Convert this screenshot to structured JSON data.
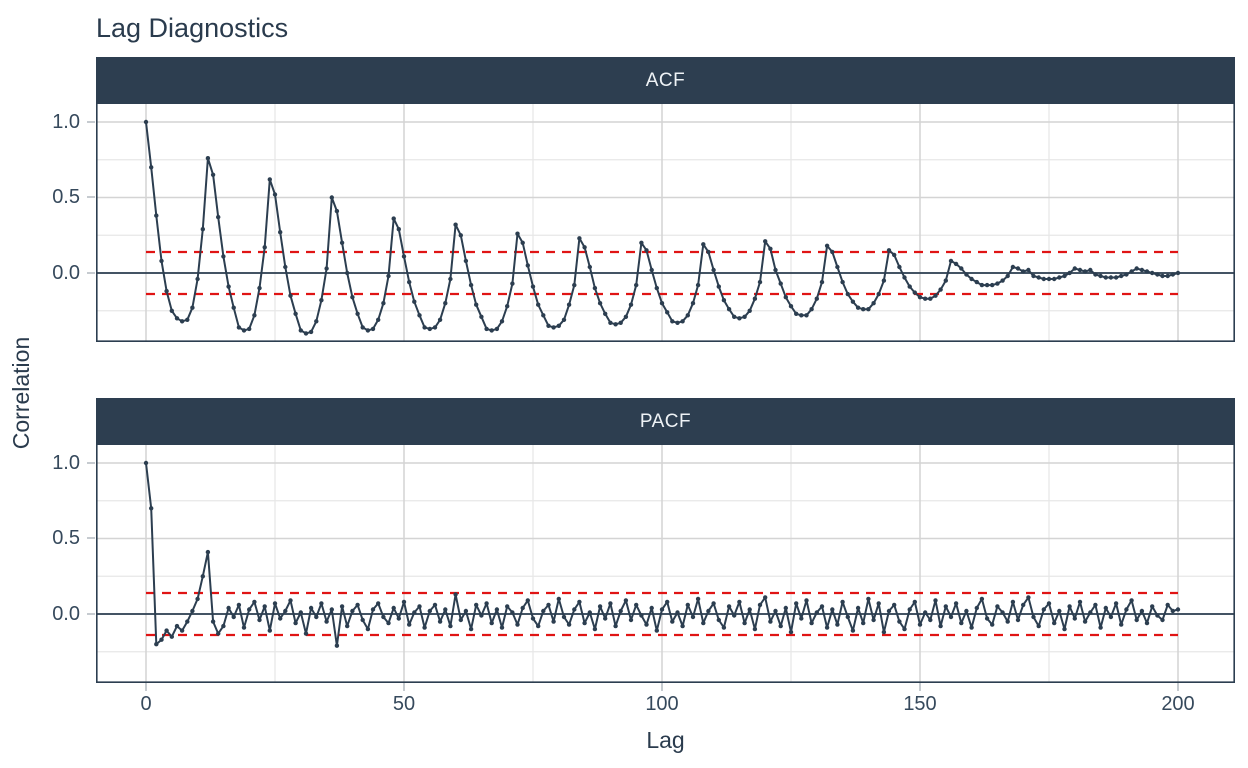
{
  "title": "Lag Diagnostics",
  "chart_data": {
    "type": "line",
    "title": "Lag Diagnostics",
    "xlabel": "Lag",
    "ylabel": "Correlation",
    "x_ticks": [
      0,
      50,
      100,
      150,
      200
    ],
    "x_minor_ticks": [
      25,
      75,
      125,
      175
    ],
    "x_tick_labels": [
      "0",
      "50",
      "100",
      "150",
      "200"
    ],
    "y_ticks": [
      1.0,
      0.5,
      0.0
    ],
    "y_minor_ticks": [
      0.75,
      0.25,
      -0.25
    ],
    "y_tick_labels": [
      "1.0",
      "0.5",
      "0.0"
    ],
    "xlim": [
      -9.7,
      211
    ],
    "ylim": [
      -0.46,
      1.13
    ],
    "grid": true,
    "legend": "none",
    "conf_band": 0.139,
    "conf_band_style": "dashed",
    "x_range_of_band": [
      0,
      200
    ],
    "colors": {
      "series": "#2C3E50",
      "zero_line": "#2C3E50",
      "strip_bg": "#2D3E50",
      "strip_text": "#EFF3F6",
      "band": "#E01414",
      "grid_major": "#D4D4D4",
      "grid_minor": "#E7E7E7",
      "axis_text": "#36495C",
      "tick": "#C6CBD0",
      "title_text": "#2A3B4D"
    },
    "facets": [
      {
        "label": "ACF",
        "values": [
          1.0,
          0.7,
          0.38,
          0.08,
          -0.12,
          -0.25,
          -0.3,
          -0.32,
          -0.31,
          -0.23,
          -0.04,
          0.29,
          0.76,
          0.65,
          0.37,
          0.11,
          -0.09,
          -0.23,
          -0.36,
          -0.38,
          -0.37,
          -0.28,
          -0.1,
          0.17,
          0.62,
          0.52,
          0.27,
          0.04,
          -0.15,
          -0.27,
          -0.38,
          -0.4,
          -0.39,
          -0.32,
          -0.18,
          0.03,
          0.5,
          0.41,
          0.2,
          0.0,
          -0.16,
          -0.27,
          -0.36,
          -0.38,
          -0.37,
          -0.31,
          -0.2,
          -0.02,
          0.36,
          0.29,
          0.11,
          -0.06,
          -0.19,
          -0.28,
          -0.36,
          -0.37,
          -0.36,
          -0.31,
          -0.2,
          -0.04,
          0.32,
          0.25,
          0.08,
          -0.08,
          -0.21,
          -0.29,
          -0.37,
          -0.38,
          -0.37,
          -0.32,
          -0.22,
          -0.07,
          0.26,
          0.2,
          0.05,
          -0.09,
          -0.21,
          -0.28,
          -0.35,
          -0.36,
          -0.35,
          -0.31,
          -0.21,
          -0.08,
          0.23,
          0.17,
          0.04,
          -0.1,
          -0.2,
          -0.27,
          -0.33,
          -0.34,
          -0.33,
          -0.29,
          -0.21,
          -0.08,
          0.2,
          0.15,
          0.02,
          -0.1,
          -0.2,
          -0.26,
          -0.32,
          -0.33,
          -0.32,
          -0.28,
          -0.2,
          -0.08,
          0.19,
          0.14,
          0.02,
          -0.09,
          -0.18,
          -0.24,
          -0.29,
          -0.3,
          -0.29,
          -0.25,
          -0.17,
          -0.06,
          0.21,
          0.16,
          0.02,
          -0.07,
          -0.16,
          -0.22,
          -0.27,
          -0.28,
          -0.28,
          -0.24,
          -0.17,
          -0.06,
          0.18,
          0.14,
          0.04,
          -0.06,
          -0.14,
          -0.19,
          -0.23,
          -0.24,
          -0.24,
          -0.2,
          -0.14,
          -0.05,
          0.15,
          0.12,
          0.04,
          -0.03,
          -0.09,
          -0.13,
          -0.16,
          -0.17,
          -0.17,
          -0.15,
          -0.11,
          -0.05,
          0.08,
          0.06,
          0.03,
          -0.01,
          -0.04,
          -0.06,
          -0.08,
          -0.08,
          -0.08,
          -0.07,
          -0.05,
          -0.02,
          0.04,
          0.03,
          0.01,
          0.02,
          -0.02,
          -0.03,
          -0.04,
          -0.04,
          -0.04,
          -0.03,
          -0.02,
          0.0,
          0.03,
          0.02,
          0.01,
          0.02,
          -0.01,
          -0.02,
          -0.03,
          -0.03,
          -0.03,
          -0.02,
          -0.01,
          0.01,
          0.03,
          0.02,
          0.01,
          0.0,
          -0.01,
          -0.02,
          -0.02,
          -0.01,
          0.0
        ]
      },
      {
        "label": "PACF",
        "values": [
          1.0,
          0.7,
          -0.2,
          -0.17,
          -0.11,
          -0.15,
          -0.08,
          -0.11,
          -0.05,
          0.02,
          0.1,
          0.25,
          0.41,
          -0.05,
          -0.13,
          -0.08,
          0.04,
          -0.02,
          0.06,
          -0.09,
          0.03,
          0.08,
          -0.04,
          0.05,
          -0.11,
          0.07,
          -0.03,
          0.02,
          0.09,
          -0.06,
          0.01,
          -0.13,
          0.04,
          -0.02,
          0.07,
          -0.05,
          0.03,
          -0.21,
          0.05,
          -0.08,
          0.02,
          0.06,
          -0.04,
          -0.1,
          0.03,
          0.07,
          -0.02,
          -0.06,
          0.04,
          -0.03,
          0.08,
          -0.07,
          0.01,
          0.05,
          -0.09,
          0.02,
          0.06,
          -0.05,
          0.03,
          -0.08,
          0.13,
          -0.04,
          0.02,
          -0.1,
          0.06,
          -0.01,
          0.07,
          -0.06,
          0.03,
          -0.09,
          0.05,
          0.01,
          -0.07,
          0.04,
          0.09,
          -0.03,
          -0.08,
          0.02,
          0.06,
          -0.05,
          0.1,
          -0.02,
          -0.07,
          0.03,
          0.08,
          -0.06,
          0.01,
          -0.1,
          0.05,
          -0.03,
          0.07,
          -0.08,
          0.02,
          0.09,
          -0.04,
          0.06,
          -0.01,
          -0.07,
          0.04,
          -0.11,
          0.03,
          0.08,
          -0.05,
          0.01,
          -0.08,
          0.06,
          -0.02,
          0.1,
          -0.06,
          0.02,
          0.07,
          -0.04,
          -0.09,
          0.05,
          -0.01,
          0.08,
          -0.06,
          0.03,
          -0.1,
          0.06,
          0.11,
          -0.05,
          0.02,
          -0.08,
          0.04,
          -0.12,
          0.07,
          -0.03,
          0.09,
          -0.06,
          0.01,
          0.05,
          -0.09,
          0.03,
          -0.07,
          0.08,
          -0.02,
          -0.11,
          0.04,
          -0.06,
          0.1,
          -0.04,
          0.07,
          -0.12,
          0.02,
          0.06,
          -0.05,
          -0.1,
          0.03,
          0.08,
          -0.07,
          0.01,
          -0.04,
          0.09,
          -0.08,
          0.05,
          -0.02,
          0.07,
          -0.06,
          0.02,
          -0.09,
          0.04,
          0.1,
          -0.03,
          -0.07,
          0.05,
          0.01,
          -0.05,
          0.08,
          -0.04,
          0.06,
          0.11,
          -0.02,
          -0.08,
          0.03,
          0.07,
          -0.06,
          0.02,
          -0.1,
          0.05,
          -0.03,
          0.08,
          -0.05,
          0.01,
          0.06,
          -0.09,
          0.04,
          -0.02,
          0.07,
          -0.07,
          0.03,
          0.09,
          -0.04,
          0.02,
          -0.06,
          0.05,
          -0.01,
          -0.04,
          0.06,
          0.02,
          0.03
        ]
      }
    ]
  }
}
